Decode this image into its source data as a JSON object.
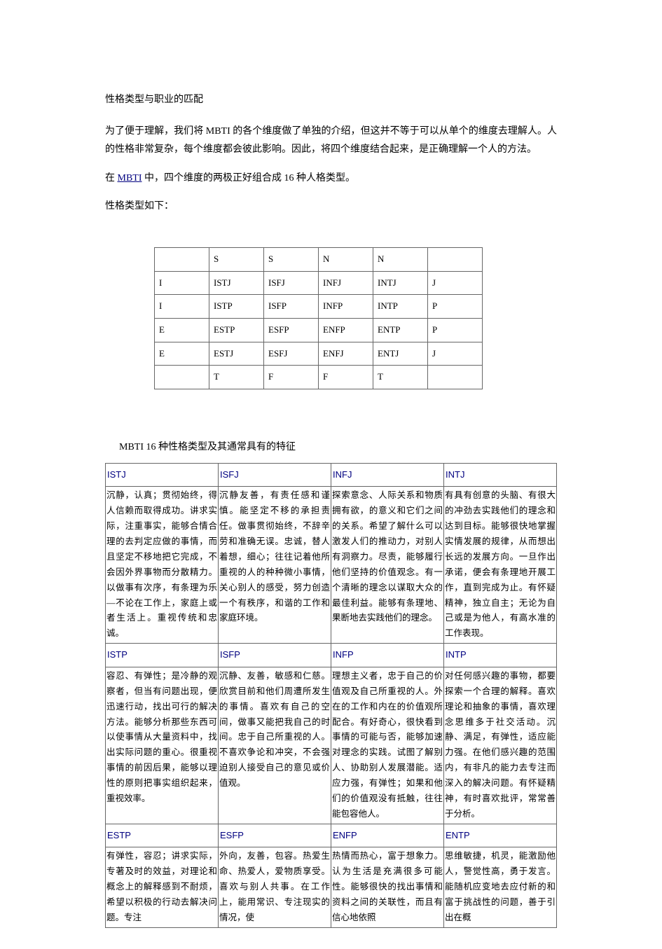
{
  "title": "性格类型与职业的匹配",
  "intro_p1": "为了便于理解，我们将 MBTI 的各个维度做了单独的介绍，但这并不等于可以从单个的维度去理解人。人的性格非常复杂，每个维度都会彼此影响。因此，将四个维度结合起来，是正确理解一个人的方法。",
  "intro_p2_prefix": "在 ",
  "intro_p2_link": "MBTI",
  "intro_p2_suffix": " 中，四个维度的两极正好组合成 16 种人格类型。",
  "intro_p3": "性格类型如下：",
  "type_grid": {
    "rows": [
      [
        "",
        "S",
        "S",
        "N",
        "N",
        ""
      ],
      [
        "I",
        "ISTJ",
        "ISFJ",
        "INFJ",
        "INTJ",
        "J"
      ],
      [
        "I",
        "ISTP",
        "ISFP",
        "INFP",
        "INTP",
        "P"
      ],
      [
        "E",
        "ESTP",
        "ESFP",
        "ENFP",
        "ENTP",
        "P"
      ],
      [
        "E",
        "ESTJ",
        "ESFJ",
        "ENFJ",
        "ENTJ",
        "J"
      ],
      [
        "",
        "T",
        "F",
        "F",
        "T",
        ""
      ]
    ]
  },
  "section_heading": "MBTI 16 种性格类型及其通常具有的特征",
  "traits": {
    "row1_codes": [
      "ISTJ",
      "ISFJ",
      "INFJ",
      "INTJ"
    ],
    "row1_desc": [
      "沉静，认真；贯彻始终，得人信赖而取得成功。讲求实际，注重事实，能够合情合理的去判定应做的事情，而且坚定不移地把它完成，不会因外界事物而分散精力。以做事有次序，有条理为乐—不论在工作上，家庭上或者生活上。重视传统和忠诚。",
      "沉静友善，有责任感和谨慎。能坚定不移的承担责任。做事贯彻始终，不辞辛劳和准确无误。忠诚，替人着想，细心；往往记着他所重视的人的种种微小事情，关心别人的感受，努力创造一个有秩序，和谐的工作和家庭环境。",
      "探索意念、人际关系和物质拥有欲，的意义和它们之间的关系。希望了解什么可以激发人们的推动力，对别人有洞察力。尽责，能够履行他们坚持的价值观念。有一个清晰的理念以谋取大众的最佳利益。能够有条理地、果断地去实践他们的理念。",
      "有具有创意的头脑、有很大的冲劲去实践他们的理念和达到目标。能够很快地掌握实情发展的规律，从而想出长远的发展方向。一旦作出承诺，便会有条理地开展工作，直到完成为止。有怀疑精神，独立自主；无论为自己或是为他人，有高水准的工作表现。"
    ],
    "row2_codes": [
      "ISTP",
      "ISFP",
      "INFP",
      "INTP"
    ],
    "row2_desc": [
      "容忍、有弹性；是冷静的观察者，但当有问题出现，便迅速行动，找出可行的解决方法。能够分析那些东西可以使事情从大量资料中，找出实际问题的重心。很重视事情的前因后果，能够以理性的原则把事实组织起来，重视效率。",
      "沉静、友善，敏感和仁慈。欣赏目前和他们周遭所发生的事情。喜欢有自己的空间，做事又能把我自己的时间。忠于自己所重视的人。不喜欢争论和冲突，不会强迫别人接受自己的意见或价值观。",
      "理想主义者，忠于自己的价值观及自己所重视的人。外在的工作和内在的价值观所配合。有好奇心，很快看到事情的可能与否，能够加速对理念的实践。试图了解别人、协助别人发展潜能。适应力强，有弹性；如果和他们的价值观没有抵触，往往能包容他人。",
      "对任何感兴趣的事物，都要探索一个合理的解释。喜欢理论和抽象的事情，喜欢理念思维多于社交活动。沉静、满足，有弹性，适应能力强。在他们感兴趣的范围内，有非凡的能力去专注而深入的解决问题。有怀疑精神，有时喜欢批评，常常善于分析。"
    ],
    "row3_codes": [
      "ESTP",
      "ESFP",
      "ENFP",
      "ENTP"
    ],
    "row3_desc": [
      "有弹性，容忍；讲求实际，专著及时的效益，对理论和概念上的解释感到不耐烦，希望以积极的行动去解决问题。专注",
      "外向，友善，包容。热爱生命、热爱人，爱物质享受。喜欢与别人共事。在工作上，能用常识、专注现实的情况，使",
      "热情而热心，富于想象力。认为生活是充满很多可能性。能够很快的找出事情和资料之间的关联性，而且有信心地依照",
      "思维敏捷，机灵，能激励他人，警觉性高，勇于发言。能随机应变地去应付新的和富于挑战性的问题，善于引出在概"
    ]
  }
}
